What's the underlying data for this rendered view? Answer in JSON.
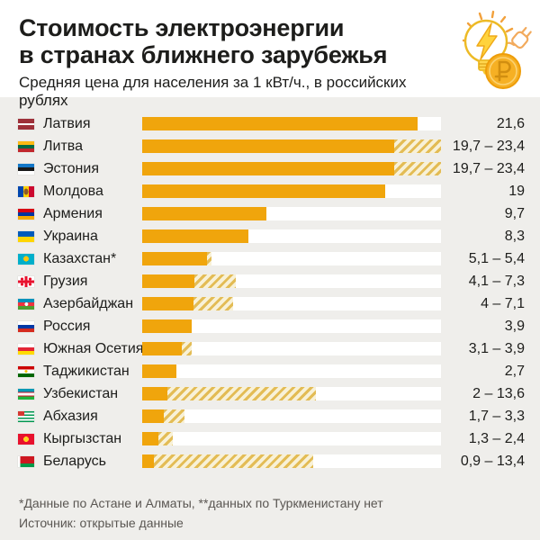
{
  "header": {
    "title_line1": "Стоимость электроэнергии",
    "title_line2": "в странах ближнего зарубежья",
    "subtitle": "Средняя цена для населения за 1 кВт/ч., в российских рублях"
  },
  "colors": {
    "bar_solid": "#F0A50C",
    "hatch_gold": "#E3BC55",
    "hatch_cream": "#F8F1D7",
    "bar_track": "#FFFFFF",
    "chart_background": "#EFEEEB",
    "header_background": "#FFFFFF",
    "text": "#1D1D1B",
    "footer_text": "#5A5652"
  },
  "chart_data": {
    "type": "bar",
    "orientation": "horizontal",
    "title": "Стоимость электроэнергии в странах ближнего зарубежья",
    "subtitle": "Средняя цена для населения за 1 кВт/ч., в российских рублях",
    "unit": "российские рубли за 1 кВт/ч",
    "scale_max": 23.4,
    "legend": "solid = значение / нижняя граница, штриховка = диапазон до верхней границы",
    "rows": [
      {
        "country": "Латвия",
        "flag": "latvia",
        "value_label": "21,6",
        "min": 21.6,
        "max": 21.6
      },
      {
        "country": "Литва",
        "flag": "lithuania",
        "value_label": "19,7 – 23,4",
        "min": 19.7,
        "max": 23.4
      },
      {
        "country": "Эстония",
        "flag": "estonia",
        "value_label": "19,7 – 23,4",
        "min": 19.7,
        "max": 23.4
      },
      {
        "country": "Молдова",
        "flag": "moldova",
        "value_label": "19",
        "min": 19,
        "max": 19
      },
      {
        "country": "Армения",
        "flag": "armenia",
        "value_label": "9,7",
        "min": 9.7,
        "max": 9.7
      },
      {
        "country": "Украина",
        "flag": "ukraine",
        "value_label": "8,3",
        "min": 8.3,
        "max": 8.3
      },
      {
        "country": "Казахстан*",
        "flag": "kazakhstan",
        "value_label": "5,1 – 5,4",
        "min": 5.1,
        "max": 5.4
      },
      {
        "country": "Грузия",
        "flag": "georgia",
        "value_label": "4,1 – 7,3",
        "min": 4.1,
        "max": 7.3
      },
      {
        "country": "Азербайджан",
        "flag": "azerbaijan",
        "value_label": "4 – 7,1",
        "min": 4,
        "max": 7.1
      },
      {
        "country": "Россия",
        "flag": "russia",
        "value_label": "3,9",
        "min": 3.9,
        "max": 3.9
      },
      {
        "country": "Южная Осетия",
        "flag": "south-ossetia",
        "value_label": "3,1 – 3,9",
        "min": 3.1,
        "max": 3.9
      },
      {
        "country": "Таджикистан",
        "flag": "tajikistan",
        "value_label": "2,7",
        "min": 2.7,
        "max": 2.7
      },
      {
        "country": "Узбекистан",
        "flag": "uzbekistan",
        "value_label": "2 – 13,6",
        "min": 2,
        "max": 13.6
      },
      {
        "country": "Абхазия",
        "flag": "abkhazia",
        "value_label": "1,7 – 3,3",
        "min": 1.7,
        "max": 3.3
      },
      {
        "country": "Кыргызстан",
        "flag": "kyrgyzstan",
        "value_label": "1,3 – 2,4",
        "min": 1.3,
        "max": 2.4
      },
      {
        "country": "Беларусь",
        "flag": "belarus",
        "value_label": "0,9 – 13,4",
        "min": 0.9,
        "max": 13.4
      }
    ]
  },
  "footer": {
    "note": "*Данные по Астане и Алматы, **данных по Туркменистану нет",
    "source": "Источник: открытые данные"
  }
}
